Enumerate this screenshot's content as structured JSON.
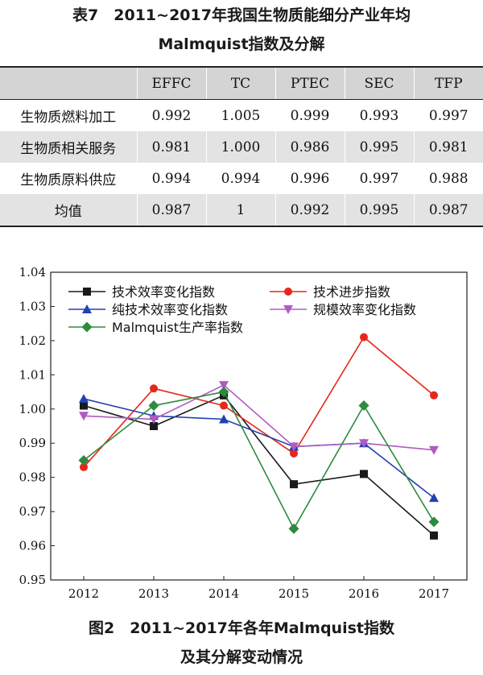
{
  "table": {
    "caption_line1": "表7　2011~2017年我国生物质能细分产业年均",
    "caption_line2": "Malmquist指数及分解",
    "columns": [
      "",
      "EFFC",
      "TC",
      "PTEC",
      "SEC",
      "TFP"
    ],
    "rows": [
      {
        "label": "生物质燃料加工",
        "cells": [
          "0.992",
          "1.005",
          "0.999",
          "0.993",
          "0.997"
        ]
      },
      {
        "label": "生物质相关服务",
        "cells": [
          "0.981",
          "1.000",
          "0.986",
          "0.995",
          "0.981"
        ]
      },
      {
        "label": "生物质原料供应",
        "cells": [
          "0.994",
          "0.994",
          "0.996",
          "0.997",
          "0.988"
        ]
      },
      {
        "label": "均值",
        "cells": [
          "0.987",
          "1",
          "0.992",
          "0.995",
          "0.987"
        ]
      }
    ]
  },
  "figure": {
    "caption_line1": "图2　2011~2017年各年Malmquist指数",
    "caption_line2": "及其分解变动情况"
  },
  "chart_data": {
    "type": "line",
    "title": "",
    "xlabel": "",
    "ylabel": "",
    "x": [
      2012,
      2013,
      2014,
      2015,
      2016,
      2017
    ],
    "ylim": [
      0.95,
      1.04
    ],
    "yticks": [
      0.95,
      0.96,
      0.97,
      0.98,
      0.99,
      1.0,
      1.01,
      1.02,
      1.03,
      1.04
    ],
    "ytick_labels": [
      "0.95",
      "0.96",
      "0.97",
      "0.98",
      "0.99",
      "1.00",
      "1.01",
      "1.02",
      "1.03",
      "1.04"
    ],
    "grid": false,
    "legend_position": "top",
    "series": [
      {
        "name": "技术效率变化指数",
        "color": "#1a1a1a",
        "marker": "square",
        "values": [
          1.001,
          0.995,
          1.004,
          0.978,
          0.981,
          0.963
        ]
      },
      {
        "name": "技术进步指数",
        "color": "#e8261b",
        "marker": "circle",
        "values": [
          0.983,
          1.006,
          1.001,
          0.987,
          1.021,
          1.004
        ]
      },
      {
        "name": "纯技术效率变化指数",
        "color": "#2142b0",
        "marker": "triangle-up",
        "values": [
          1.003,
          0.998,
          0.997,
          0.989,
          0.99,
          0.974
        ]
      },
      {
        "name": "规模效率变化指数",
        "color": "#b05ac2",
        "marker": "triangle-down",
        "values": [
          0.998,
          0.997,
          1.007,
          0.989,
          0.99,
          0.988
        ]
      },
      {
        "name": "Malmquist生产率指数",
        "color": "#2e8a3e",
        "marker": "diamond",
        "values": [
          0.985,
          1.001,
          1.005,
          0.965,
          1.001,
          0.967
        ]
      }
    ]
  }
}
